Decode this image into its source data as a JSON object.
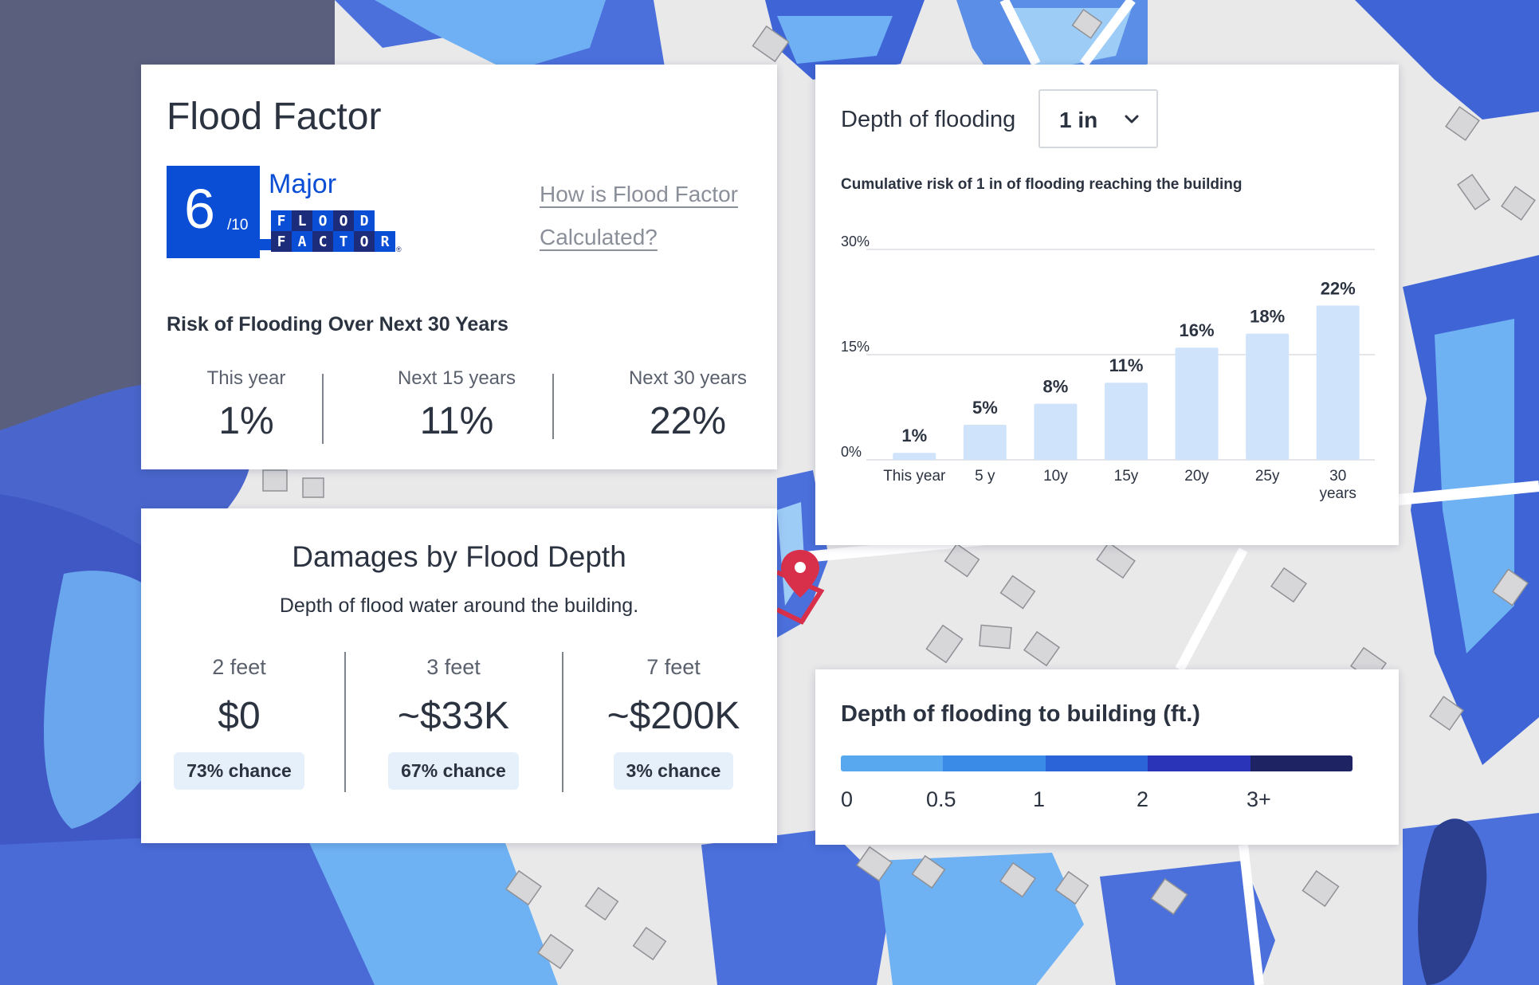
{
  "flood_factor": {
    "title": "Flood Factor",
    "score": "6",
    "score_max": "/10",
    "severity": "Major",
    "logo_row1": [
      "F",
      "L",
      "O",
      "O",
      "D"
    ],
    "logo_row2": [
      "F",
      "A",
      "C",
      "T",
      "O",
      "R"
    ],
    "logo_reg": "®",
    "link_text": "How is Flood Factor Calculated?",
    "risk_heading": "Risk of Flooding Over Next 30 Years",
    "stats": [
      {
        "label": "This year",
        "value": "1%"
      },
      {
        "label": "Next 15 years",
        "value": "11%"
      },
      {
        "label": "Next 30 years",
        "value": "22%"
      }
    ]
  },
  "damages": {
    "title": "Damages by Flood Depth",
    "subtitle": "Depth of flood water around the building.",
    "columns": [
      {
        "depth": "2 feet",
        "value": "$0",
        "chance": "73% chance"
      },
      {
        "depth": "3 feet",
        "value": "~$33K",
        "chance": "67% chance"
      },
      {
        "depth": "7 feet",
        "value": "~$200K",
        "chance": "3% chance"
      }
    ]
  },
  "depth_selector": {
    "label": "Depth of flooding",
    "value": "1 in"
  },
  "chart_data": {
    "type": "bar",
    "title": "Cumulative risk of 1 in of flooding reaching the building",
    "categories": [
      "This year",
      "5 y",
      "10y",
      "15y",
      "20y",
      "25y",
      "30 years"
    ],
    "values": [
      1,
      5,
      8,
      11,
      16,
      18,
      22
    ],
    "value_labels": [
      "1%",
      "5%",
      "8%",
      "11%",
      "16%",
      "18%",
      "22%"
    ],
    "yticks": [
      0,
      15,
      30
    ],
    "ytick_labels": [
      "0%",
      "15%",
      "30%"
    ],
    "ylim": [
      0,
      30
    ],
    "xlabel": "",
    "ylabel": "",
    "grid": true,
    "bar_color": "#cfe4fb"
  },
  "legend": {
    "title": "Depth of flooding to building (ft.)",
    "ticks": [
      "0",
      "0.5",
      "1",
      "2",
      "3+"
    ],
    "colors": [
      "#58a8ef",
      "#3a8ae8",
      "#2a64d8",
      "#2a34b8",
      "#1e2463"
    ]
  },
  "colors": {
    "brand_blue": "#0a4ed6",
    "logo_dark": "#1c2b7a",
    "marker_red": "#d8304a"
  }
}
